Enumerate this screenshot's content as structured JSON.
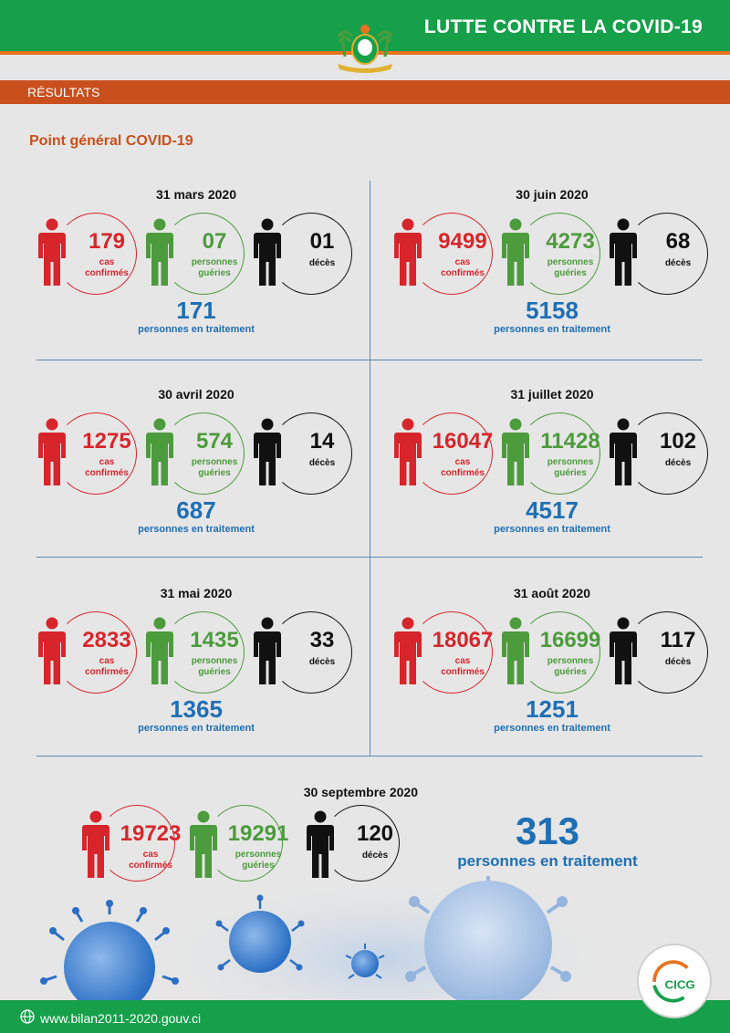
{
  "header": {
    "title": "LUTTE CONTRE LA COVID-19"
  },
  "section": {
    "title": "RÉSULTATS"
  },
  "subtitle": "Point général COVID-19",
  "colors": {
    "green": "#16a04a",
    "orange": "#c94f1d",
    "red": "#d7262b",
    "recovered": "#4c9b3c",
    "blue": "#1f6fb5"
  },
  "labels": {
    "cases": [
      "cas",
      "confirmés"
    ],
    "recovered": [
      "personnes",
      "guéries"
    ],
    "deaths": "décès",
    "treatment": "personnes en traitement"
  },
  "periods": [
    {
      "date": "31 mars 2020",
      "cases": "179",
      "recovered": "07",
      "deaths": "01",
      "treatment": "171"
    },
    {
      "date": "30 juin 2020",
      "cases": "9499",
      "recovered": "4273",
      "deaths": "68",
      "treatment": "5158"
    },
    {
      "date": "30 avril 2020",
      "cases": "1275",
      "recovered": "574",
      "deaths": "14",
      "treatment": "687"
    },
    {
      "date": "31 juillet 2020",
      "cases": "16047",
      "recovered": "11428",
      "deaths": "102",
      "treatment": "4517"
    },
    {
      "date": "31 mai 2020",
      "cases": "2833",
      "recovered": "1435",
      "deaths": "33",
      "treatment": "1365"
    },
    {
      "date": "31 août 2020",
      "cases": "18067",
      "recovered": "16699",
      "deaths": "117",
      "treatment": "1251"
    }
  ],
  "final": {
    "date": "30 septembre 2020",
    "cases": "19723",
    "recovered": "19291",
    "deaths": "120",
    "treatment": "313"
  },
  "footer": {
    "url": "www.bilan2011-2020.gouv.ci"
  },
  "icons": [
    "person-icon",
    "emblem-icon",
    "virus-icon",
    "globe-icon",
    "cicg-logo"
  ]
}
